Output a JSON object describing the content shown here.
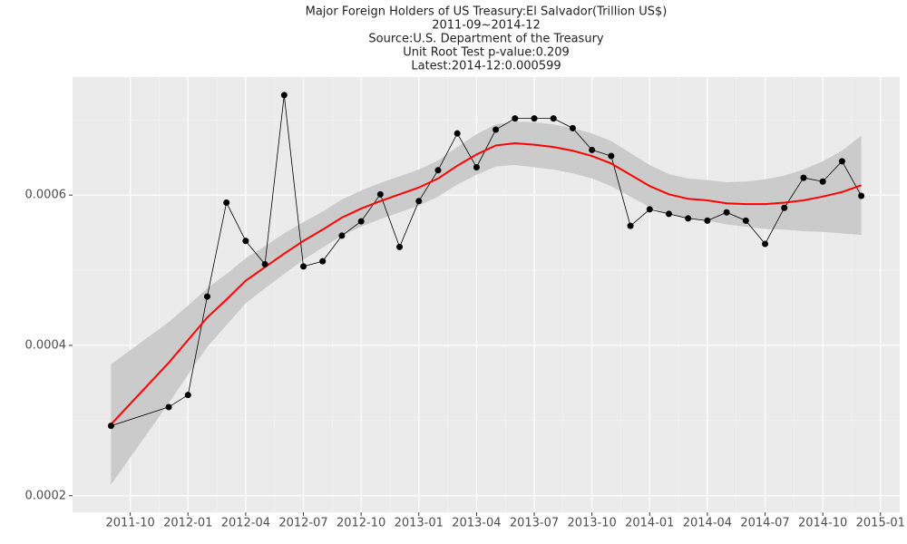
{
  "chart_data": {
    "type": "line",
    "title": "Major Foreign Holders of US Treasury:El Salvador(Trillion US$)",
    "subtitle": [
      "2011-09~2014-12",
      "Source:U.S. Department of the Treasury",
      "Unit Root Test p-value:0.209",
      "Latest:2014-12:0.000599"
    ],
    "x": [
      "2011-09",
      "2011-12",
      "2012-01",
      "2012-02",
      "2012-03",
      "2012-04",
      "2012-05",
      "2012-06",
      "2012-07",
      "2012-08",
      "2012-09",
      "2012-10",
      "2012-11",
      "2012-12",
      "2013-01",
      "2013-02",
      "2013-03",
      "2013-04",
      "2013-05",
      "2013-06",
      "2013-07",
      "2013-08",
      "2013-09",
      "2013-10",
      "2013-11",
      "2013-12",
      "2014-01",
      "2014-02",
      "2014-03",
      "2014-04",
      "2014-05",
      "2014-06",
      "2014-07",
      "2014-08",
      "2014-09",
      "2014-10",
      "2014-11",
      "2014-12"
    ],
    "series": [
      {
        "color": "#000000",
        "values": [
          0.000293,
          0.000318,
          0.000334,
          0.000465,
          0.00059,
          0.000539,
          0.000508,
          0.000733,
          0.000505,
          0.000512,
          0.000546,
          0.000565,
          0.000601,
          0.000531,
          0.000592,
          0.000633,
          0.000682,
          0.000637,
          0.000687,
          0.000702,
          0.000702,
          0.000702,
          0.000689,
          0.00066,
          0.000652,
          0.000559,
          0.000581,
          0.000575,
          0.000569,
          0.000566,
          0.000577,
          0.000566,
          0.000535,
          0.000583,
          0.000623,
          0.000618,
          0.000645,
          0.000599
        ]
      }
    ],
    "smooth": {
      "color": "#ff0000",
      "band_color": "#cbcbcb",
      "values": [
        0.000295,
        0.000377,
        0.000407,
        0.000437,
        0.000461,
        0.000486,
        0.000504,
        0.000522,
        0.000539,
        0.000554,
        0.00057,
        0.000582,
        0.000592,
        0.000601,
        0.00061,
        0.000622,
        0.000639,
        0.000654,
        0.000666,
        0.000669,
        0.000667,
        0.000664,
        0.000659,
        0.000652,
        0.000642,
        0.000627,
        0.000612,
        0.000601,
        0.000595,
        0.000593,
        0.000589,
        0.000588,
        0.000588,
        0.00059,
        0.000593,
        0.000598,
        0.000604,
        0.000613
      ],
      "lower": [
        0.000215,
        0.000323,
        0.000361,
        0.000398,
        0.000427,
        0.000456,
        0.000476,
        0.000495,
        0.000514,
        0.00053,
        0.000546,
        0.000558,
        0.000568,
        0.000577,
        0.000586,
        0.000598,
        0.000614,
        0.000627,
        0.000638,
        0.00064,
        0.000637,
        0.000634,
        0.000629,
        0.000622,
        0.000612,
        0.000598,
        0.000584,
        0.000574,
        0.000568,
        0.000566,
        0.000561,
        0.000558,
        0.000555,
        0.000554,
        0.000552,
        0.000551,
        0.000549,
        0.000547
      ],
      "upper": [
        0.000375,
        0.000431,
        0.000453,
        0.000476,
        0.000495,
        0.000516,
        0.000532,
        0.000549,
        0.000564,
        0.000578,
        0.000594,
        0.000606,
        0.000616,
        0.000625,
        0.000634,
        0.000646,
        0.000664,
        0.000681,
        0.000694,
        0.000698,
        0.000697,
        0.000694,
        0.000689,
        0.000682,
        0.000672,
        0.000656,
        0.00064,
        0.000628,
        0.000622,
        0.00062,
        0.000617,
        0.000618,
        0.000621,
        0.000626,
        0.000634,
        0.000645,
        0.000659,
        0.000679
      ]
    },
    "xlim": [
      "2011-07",
      "2015-02"
    ],
    "xticks": [
      "2011-10",
      "2012-01",
      "2012-04",
      "2012-07",
      "2012-10",
      "2013-01",
      "2013-04",
      "2013-07",
      "2013-10",
      "2014-01",
      "2014-04",
      "2014-07",
      "2014-10",
      "2015-01"
    ],
    "ylim": [
      0.000178,
      0.000757
    ],
    "yticks": [
      0.0002,
      0.0004,
      0.0006
    ],
    "grid": true
  }
}
